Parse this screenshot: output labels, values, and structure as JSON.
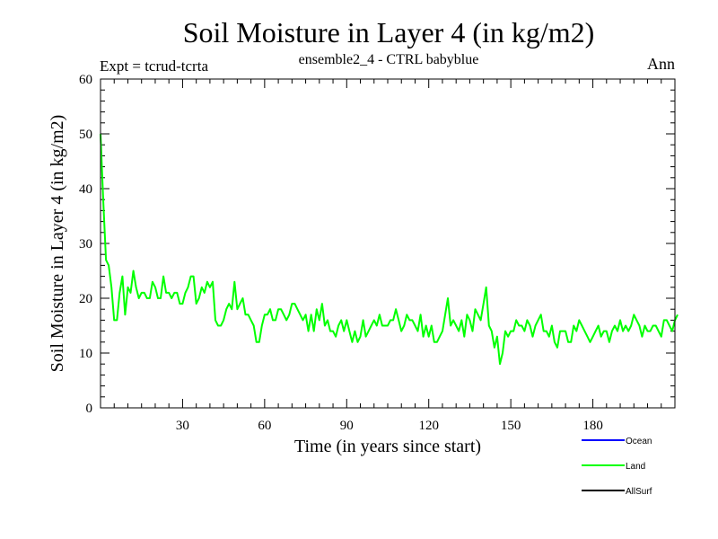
{
  "chart_data": {
    "type": "line",
    "title": "Soil Moisture in Layer 4 (in kg/m2)",
    "subtitle": "ensemble2_4 - CTRL babyblue",
    "left_label": "Expt = tcrud-tcrta",
    "right_label": "Ann",
    "xlabel": "Time (in years since start)",
    "ylabel": "Soil Moisture in Layer 4 (in kg/m2)",
    "xlim": [
      0,
      210
    ],
    "ylim": [
      0,
      60
    ],
    "xticks": [
      30,
      60,
      90,
      120,
      150,
      180
    ],
    "yticks": [
      0,
      10,
      20,
      30,
      40,
      50,
      60
    ],
    "grid": false,
    "legend": "bottom-right",
    "series": [
      {
        "name": "Ocean",
        "color": "#0000ff",
        "values": []
      },
      {
        "name": "Land",
        "color": "#00ff00",
        "x_start": 0,
        "x_step": 1,
        "values": [
          50,
          38,
          27,
          26,
          22,
          16,
          16,
          21,
          24,
          17,
          22,
          21,
          25,
          22,
          20,
          21,
          21,
          20,
          20,
          23,
          22,
          20,
          20,
          24,
          21,
          21,
          20,
          21,
          21,
          19,
          19,
          21,
          22,
          24,
          24,
          19,
          20,
          22,
          21,
          23,
          22,
          23,
          16,
          15,
          15,
          16,
          18,
          19,
          18,
          23,
          18,
          19,
          20,
          17,
          17,
          16,
          15,
          12,
          12,
          15,
          17,
          17,
          18,
          16,
          16,
          18,
          18,
          17,
          16,
          17,
          19,
          19,
          18,
          17,
          16,
          17,
          14,
          17,
          14,
          18,
          16,
          19,
          15,
          16,
          14,
          14,
          13,
          15,
          16,
          14,
          16,
          14,
          12,
          14,
          12,
          13,
          16,
          13,
          14,
          15,
          16,
          15,
          17,
          15,
          15,
          15,
          16,
          16,
          18,
          16,
          14,
          15,
          17,
          16,
          16,
          15,
          14,
          17,
          13,
          15,
          13,
          15,
          12,
          12,
          13,
          14,
          17,
          20,
          15,
          16,
          15,
          14,
          16,
          13,
          17,
          16,
          14,
          18,
          17,
          16,
          19,
          22,
          15,
          14,
          11,
          13,
          8,
          10,
          14,
          13,
          14,
          14,
          16,
          15,
          15,
          14,
          16,
          15,
          13,
          15,
          16,
          17,
          14,
          14,
          13,
          15,
          12,
          11,
          14,
          14,
          14,
          12,
          12,
          15,
          14,
          16,
          15,
          14,
          13,
          12,
          13,
          14,
          15,
          13,
          14,
          14,
          12,
          14,
          15,
          14,
          16,
          14,
          15,
          14,
          15,
          17,
          16,
          15,
          13,
          15,
          14,
          14,
          15,
          15,
          14,
          13,
          16,
          16,
          15,
          14,
          16,
          17
        ]
      },
      {
        "name": "AllSurf",
        "color": "#000000",
        "values": []
      }
    ]
  }
}
